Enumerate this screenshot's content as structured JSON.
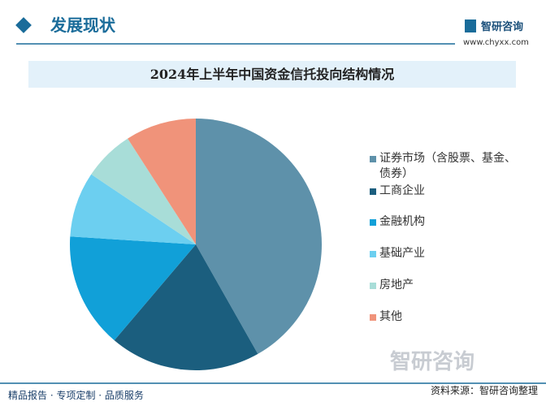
{
  "header": {
    "section": "发展现状",
    "brand": "智研咨询",
    "url": "www.chyxx.com"
  },
  "chart_data": {
    "type": "pie",
    "title": "2024年上半年中国资金信托投向结构情况",
    "categories": [
      "证券市场（含股票、基金、债券）",
      "工商企业",
      "金融机构",
      "基础产业",
      "房地产",
      "其他"
    ],
    "values": [
      41.8,
      19.4,
      14.8,
      8.4,
      6.5,
      9.1
    ],
    "colors": [
      "#5e91aa",
      "#1b5e7e",
      "#11a0d8",
      "#6ccff0",
      "#a8ddd8",
      "#f0937a"
    ],
    "legend": "right"
  },
  "footer": {
    "slogan": "精品报告 · 专项定制 · 品质服务",
    "logo": "智研咨询",
    "source": "资料来源：智研咨询整理"
  }
}
